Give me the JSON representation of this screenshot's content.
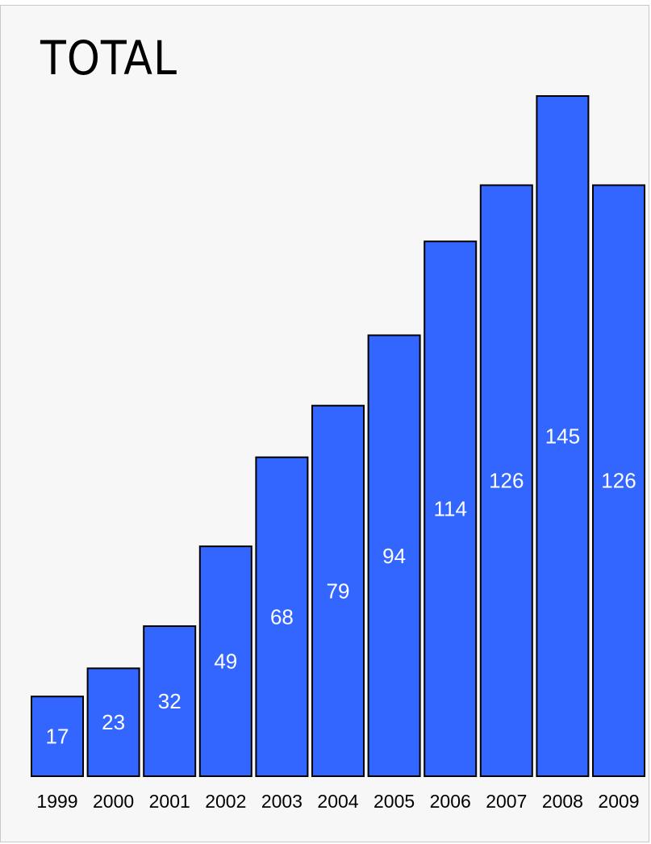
{
  "chart_data": {
    "type": "bar",
    "title": "TOTAL",
    "xlabel": "",
    "ylabel": "",
    "categories": [
      "1999",
      "2000",
      "2001",
      "2002",
      "2003",
      "2004",
      "2005",
      "2006",
      "2007",
      "2008",
      "2009"
    ],
    "values": [
      17,
      23,
      32,
      49,
      68,
      79,
      94,
      114,
      126,
      145,
      126
    ],
    "ylim": [
      0,
      145
    ],
    "grid": false,
    "legend": "none",
    "bar_color": "#3366ff",
    "bar_edge_color": "#000000",
    "label_color": "#ffffff"
  }
}
